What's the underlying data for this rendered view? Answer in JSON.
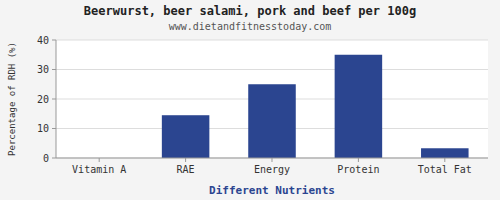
{
  "chart_data": {
    "type": "bar",
    "title": "Beerwurst, beer salami, pork and beef per 100g",
    "subtitle": "www.dietandfitnesstoday.com",
    "xlabel": "Different Nutrients",
    "ylabel": "Percentage of RDH (%)",
    "categories": [
      "Vitamin A",
      "RAE",
      "Energy",
      "Protein",
      "Total Fat"
    ],
    "values": [
      0,
      14.5,
      25,
      35,
      3.3
    ],
    "color": "#2B4590",
    "ylim": [
      0,
      40
    ],
    "yticks": [
      0,
      10,
      20,
      30,
      40
    ],
    "grid": true
  }
}
